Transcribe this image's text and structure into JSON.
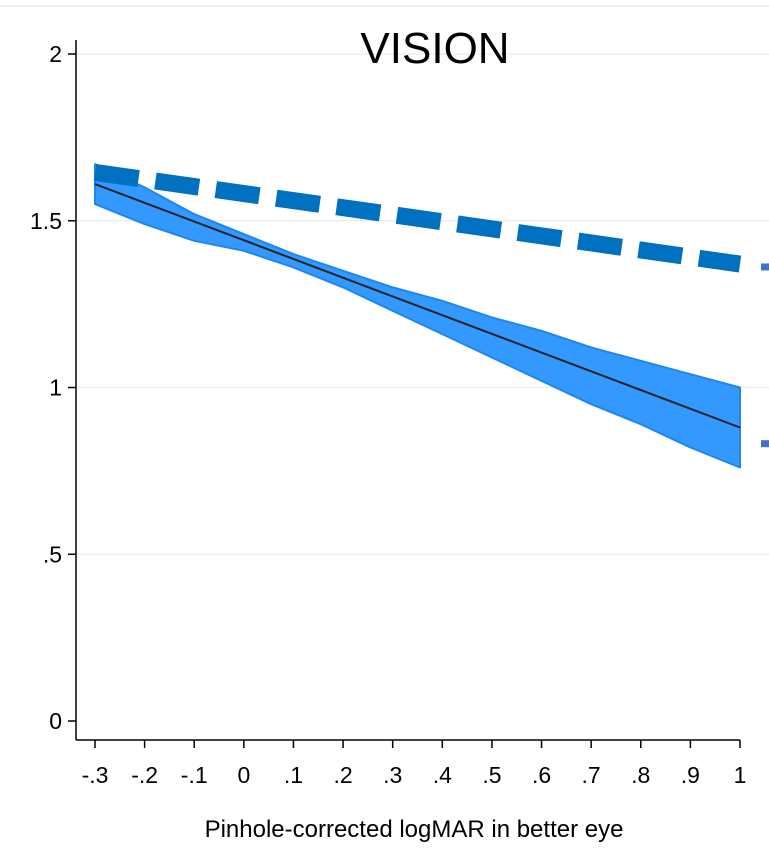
{
  "chart_data": {
    "type": "line",
    "title": "VISION",
    "xlabel": "Pinhole-corrected logMAR in better eye",
    "ylabel": "",
    "xlim": [
      -0.3,
      1.0
    ],
    "ylim": [
      0,
      2
    ],
    "x_ticks": [
      {
        "value": -0.3,
        "label": "-.3"
      },
      {
        "value": -0.2,
        "label": "-.2"
      },
      {
        "value": -0.1,
        "label": "-.1"
      },
      {
        "value": 0.0,
        "label": "0"
      },
      {
        "value": 0.1,
        "label": ".1"
      },
      {
        "value": 0.2,
        "label": ".2"
      },
      {
        "value": 0.3,
        "label": ".3"
      },
      {
        "value": 0.4,
        "label": ".4"
      },
      {
        "value": 0.5,
        "label": ".5"
      },
      {
        "value": 0.6,
        "label": ".6"
      },
      {
        "value": 0.7,
        "label": ".7"
      },
      {
        "value": 0.8,
        "label": ".8"
      },
      {
        "value": 0.9,
        "label": ".9"
      },
      {
        "value": 1.0,
        "label": "1"
      }
    ],
    "y_ticks": [
      {
        "value": 0,
        "label": "0"
      },
      {
        "value": 0.5,
        "label": ".5"
      },
      {
        "value": 1.0,
        "label": "1"
      },
      {
        "value": 1.5,
        "label": "1.5"
      },
      {
        "value": 2.0,
        "label": "2"
      }
    ],
    "grid": true,
    "series": [
      {
        "style": "solid-line-with-ci-band",
        "color": "#222222",
        "band_color": "#3399ff",
        "band_edge_color": "#1f86ee",
        "x": [
          -0.3,
          1.0
        ],
        "y": [
          1.61,
          0.88
        ],
        "ci_x": [
          -0.3,
          -0.2,
          -0.1,
          0.0,
          0.1,
          0.2,
          0.3,
          0.4,
          0.5,
          0.6,
          0.7,
          0.8,
          0.9,
          1.0
        ],
        "ci_lower": [
          1.55,
          1.49,
          1.44,
          1.41,
          1.36,
          1.3,
          1.23,
          1.16,
          1.09,
          1.02,
          0.95,
          0.89,
          0.82,
          0.76
        ],
        "ci_upper": [
          1.67,
          1.6,
          1.52,
          1.46,
          1.4,
          1.35,
          1.3,
          1.26,
          1.21,
          1.17,
          1.12,
          1.08,
          1.04,
          1.0
        ]
      },
      {
        "style": "thick-dashed-line",
        "color": "#0070c0",
        "x": [
          -0.3,
          1.0
        ],
        "y": [
          1.645,
          1.37
        ]
      }
    ],
    "edge_marks": {
      "color": "#4472c4",
      "y": [
        1.36,
        0.83
      ]
    }
  }
}
